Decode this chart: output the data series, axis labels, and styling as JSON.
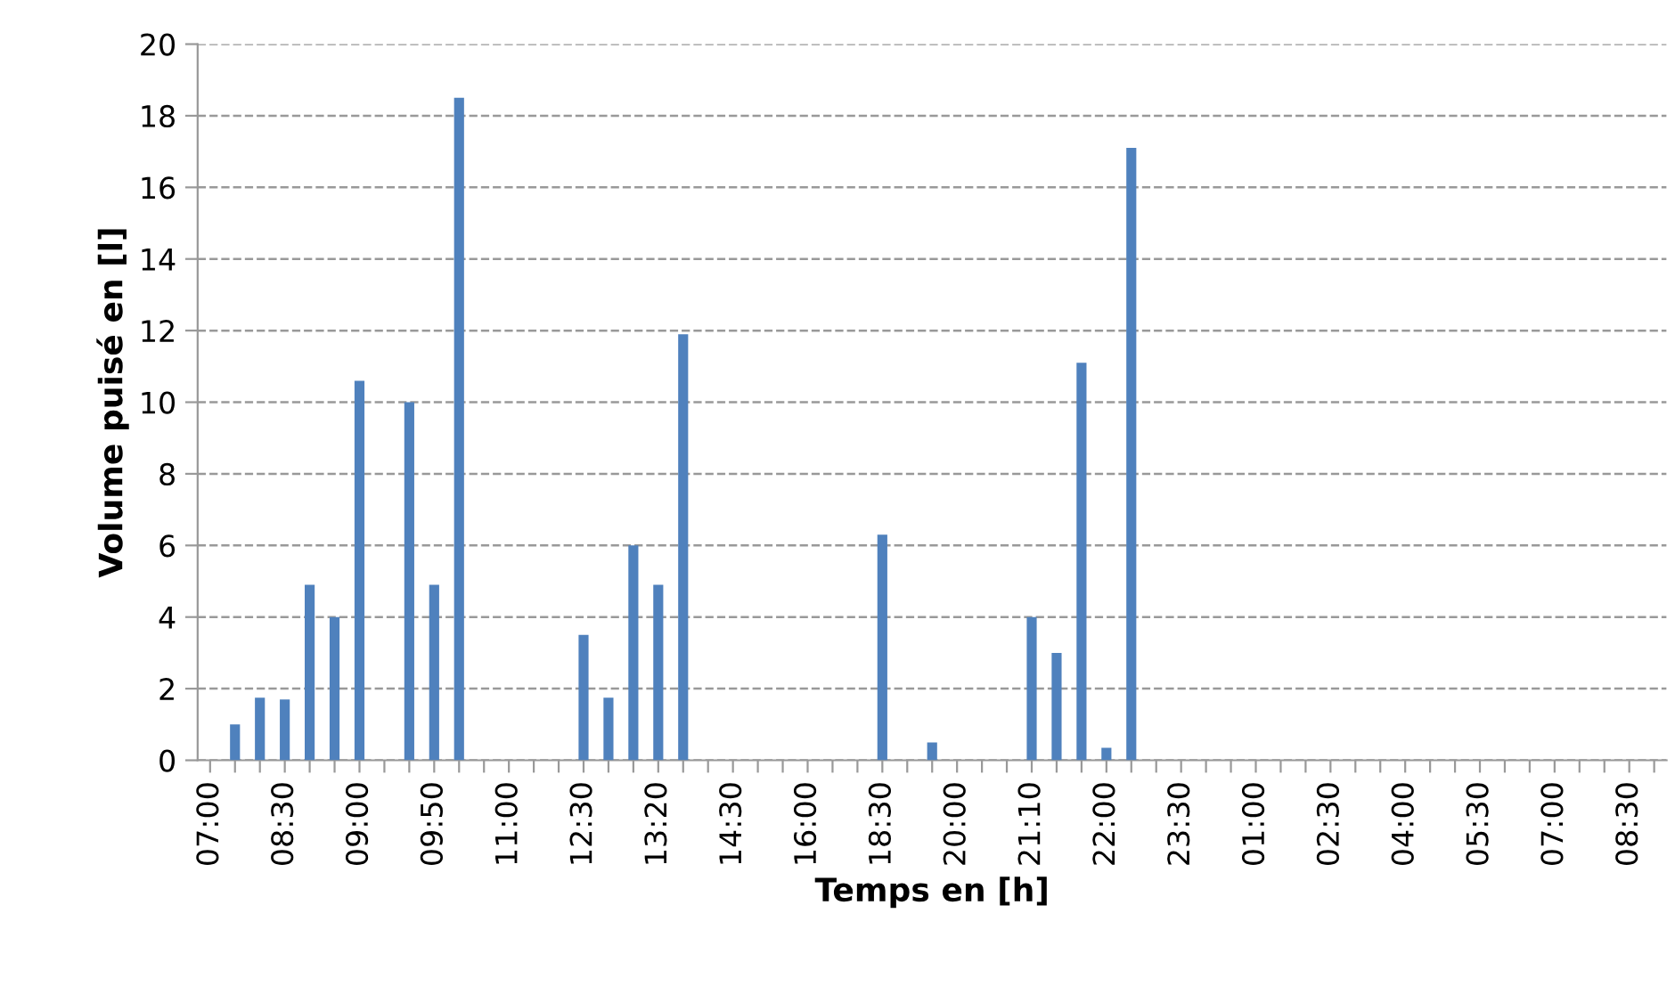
{
  "chart_data": {
    "type": "bar",
    "xlabel": "Temps en [h]",
    "ylabel": "Volume puisé en [l]",
    "categories": [
      "07:00",
      null,
      null,
      "08:30",
      null,
      null,
      "09:00",
      null,
      null,
      "09:50",
      null,
      null,
      "11:00",
      null,
      null,
      "12:30",
      null,
      null,
      "13:20",
      null,
      null,
      "14:30",
      null,
      null,
      "16:00",
      null,
      null,
      "18:30",
      null,
      null,
      "20:00",
      null,
      null,
      "21:10",
      null,
      null,
      "22:00",
      null,
      null,
      "23:30",
      null,
      null,
      "01:00",
      null,
      null,
      "02:30",
      null,
      null,
      "04:00",
      null,
      null,
      "05:30",
      null,
      null,
      "07:00",
      null,
      null,
      "08:30",
      null
    ],
    "values": [
      0,
      1.0,
      1.75,
      1.7,
      4.9,
      4.0,
      10.6,
      0,
      10.0,
      4.9,
      18.5,
      0,
      0,
      0,
      0,
      3.5,
      1.75,
      6.0,
      4.9,
      11.9,
      0,
      0,
      0,
      0,
      0,
      0,
      0,
      6.3,
      0,
      0.5,
      0,
      0,
      0,
      4.0,
      3.0,
      11.1,
      0.35,
      17.1,
      0,
      0,
      0,
      0,
      0,
      0,
      0,
      0,
      0,
      0,
      0,
      0,
      0,
      0,
      0,
      0,
      0,
      0,
      0,
      0,
      0
    ],
    "color": "#4f81bd",
    "ylim": [
      0,
      20
    ],
    "yticks": [
      0,
      2,
      4,
      6,
      8,
      10,
      12,
      14,
      16,
      18,
      20
    ],
    "grid": "y"
  }
}
